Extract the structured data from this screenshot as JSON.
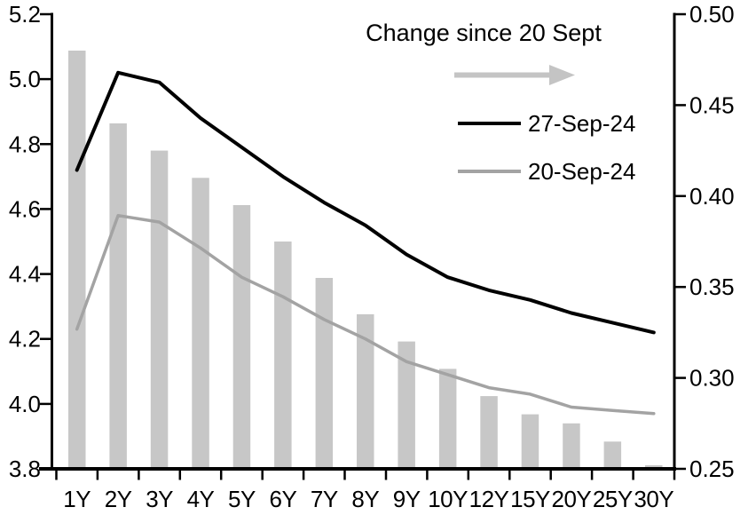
{
  "chart_data": {
    "type": "combo-bar-line",
    "title": "",
    "categories": [
      "1Y",
      "2Y",
      "3Y",
      "4Y",
      "5Y",
      "6Y",
      "7Y",
      "8Y",
      "9Y",
      "10Y",
      "12Y",
      "15Y",
      "20Y",
      "25Y",
      "30Y"
    ],
    "series": [
      {
        "name": "Change since 20 Sept",
        "type": "bar",
        "axis": "right",
        "color": "#C7C7C7",
        "values": [
          0.48,
          0.44,
          0.425,
          0.41,
          0.395,
          0.375,
          0.355,
          0.335,
          0.32,
          0.305,
          0.29,
          0.28,
          0.275,
          0.265,
          0.252
        ]
      },
      {
        "name": "27-Sep-24",
        "type": "line",
        "axis": "left",
        "color": "#000000",
        "values": [
          4.72,
          5.02,
          4.99,
          4.88,
          4.79,
          4.7,
          4.62,
          4.55,
          4.46,
          4.39,
          4.35,
          4.32,
          4.28,
          4.25,
          4.22
        ]
      },
      {
        "name": "20-Sep-24",
        "type": "line",
        "axis": "left",
        "color": "#A3A3A3",
        "values": [
          4.23,
          4.58,
          4.56,
          4.48,
          4.39,
          4.33,
          4.26,
          4.2,
          4.13,
          4.09,
          4.05,
          4.03,
          3.99,
          3.98,
          3.97
        ]
      }
    ],
    "left_axis": {
      "min": 3.8,
      "max": 5.2,
      "tick_step": 0.2,
      "tick_labels": [
        "5.2",
        "5.0",
        "4.8",
        "4.6",
        "4.4",
        "4.2",
        "4.0",
        "3.8"
      ]
    },
    "right_axis": {
      "min": 0.25,
      "max": 0.5,
      "tick_step": 0.05,
      "tick_labels": [
        "0.50",
        "0.45",
        "0.40",
        "0.35",
        "0.30",
        "0.25"
      ]
    },
    "grid": false,
    "legend_position": "top-center-inside",
    "legend": {
      "title": "Change since 20 Sept",
      "arrow_icon": "right-arrow",
      "arrow_color": "#C4C4C4",
      "entries": [
        {
          "label": "27-Sep-24",
          "swatch_color": "#000000"
        },
        {
          "label": "20-Sep-24",
          "swatch_color": "#A3A3A3"
        }
      ]
    }
  }
}
